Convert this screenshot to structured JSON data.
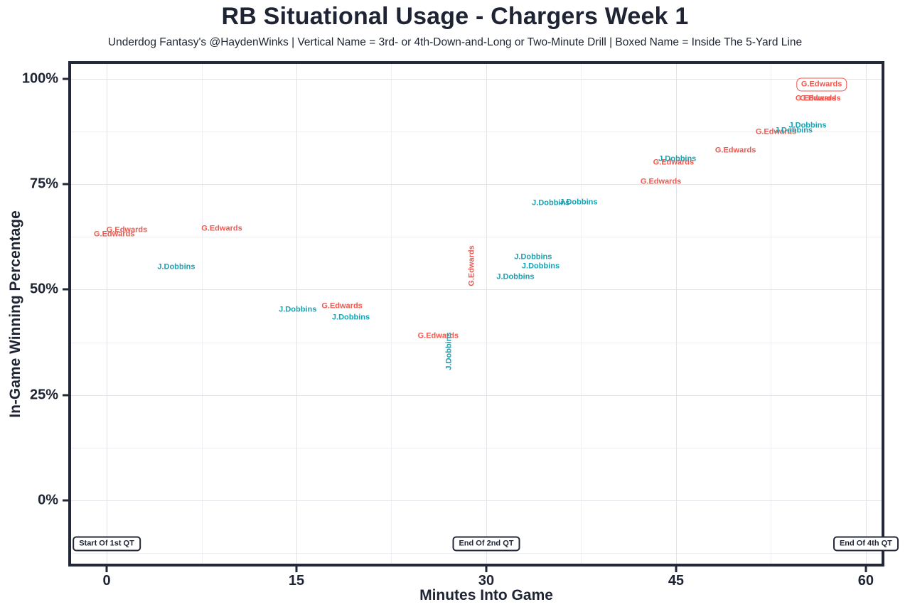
{
  "header": {
    "title": "RB Situational Usage - Chargers Week 1",
    "subtitle": "Underdog Fantasy's @HaydenWinks | Vertical Name = 3rd- or 4th-Down-and-Long or Two-Minute Drill | Boxed Name = Inside The 5-Yard Line"
  },
  "colors": {
    "edwards_red": "#ee584e",
    "dobbins_teal": "#16a3b3",
    "axis_dark": "#232838",
    "grid_major": "#e2e3e8",
    "grid_minor": "#efeff3"
  },
  "chart_data": {
    "type": "scatter",
    "title": "RB Situational Usage - Chargers Week 1",
    "subtitle": "Underdog Fantasy's @HaydenWinks | Vertical Name = 3rd- or 4th-Down-and-Long or Two-Minute Drill | Boxed Name = Inside The 5-Yard Line",
    "xlabel": "Minutes Into Game",
    "ylabel": "In-Game Winning Percentage",
    "xlim": [
      -2.81,
      61.24
    ],
    "ylim": [
      -15.0,
      103.5
    ],
    "grid": true,
    "legend": "none",
    "point_style": "text-label",
    "x_tick_labels": [
      {
        "value": 0,
        "label": "0"
      },
      {
        "value": 15,
        "label": "15"
      },
      {
        "value": 30,
        "label": "30"
      },
      {
        "value": 45,
        "label": "45"
      },
      {
        "value": 60,
        "label": "60"
      }
    ],
    "y_tick_labels": [
      {
        "value": 0,
        "label": "0%"
      },
      {
        "value": 25,
        "label": "25%"
      },
      {
        "value": 50,
        "label": "50%"
      },
      {
        "value": 75,
        "label": "75%"
      },
      {
        "value": 100,
        "label": "100%"
      }
    ],
    "x_gridlines": {
      "major": [
        0,
        15,
        30,
        45,
        60
      ],
      "minor": [
        7.5,
        22.5,
        37.5,
        52.5
      ]
    },
    "y_gridlines": {
      "major": [
        0,
        25,
        50,
        75,
        100
      ],
      "minor": [
        -12.5,
        12.5,
        37.5,
        62.5,
        87.5
      ]
    },
    "series": [
      {
        "name": "G.Edwards",
        "color": "#ee584e",
        "points": [
          {
            "x": 56.5,
            "y": 98.6,
            "boxed": true
          },
          {
            "x": 56.05,
            "y": 95.2
          },
          {
            "x": 56.4,
            "y": 95.2
          },
          {
            "x": 52.9,
            "y": 87.3
          },
          {
            "x": 49.7,
            "y": 82.9
          },
          {
            "x": 44.8,
            "y": 80.1
          },
          {
            "x": 43.8,
            "y": 75.6
          },
          {
            "x": 28.9,
            "y": 55.6,
            "rotated": true
          },
          {
            "x": 9.1,
            "y": 64.4
          },
          {
            "x": 1.6,
            "y": 64.1
          },
          {
            "x": 0.6,
            "y": 63.1
          },
          {
            "x": 18.6,
            "y": 46.0
          },
          {
            "x": 26.2,
            "y": 39.0
          }
        ]
      },
      {
        "name": "J.Dobbins",
        "color": "#16a3b3",
        "points": [
          {
            "x": 55.4,
            "y": 88.8
          },
          {
            "x": 54.3,
            "y": 87.7
          },
          {
            "x": 45.1,
            "y": 80.9
          },
          {
            "x": 37.3,
            "y": 70.7
          },
          {
            "x": 35.1,
            "y": 70.5
          },
          {
            "x": 33.7,
            "y": 57.7
          },
          {
            "x": 34.3,
            "y": 55.5
          },
          {
            "x": 32.3,
            "y": 53.0
          },
          {
            "x": 5.5,
            "y": 55.3
          },
          {
            "x": 15.1,
            "y": 45.2
          },
          {
            "x": 19.3,
            "y": 43.3
          },
          {
            "x": 27.1,
            "y": 35.4,
            "rotated": true
          }
        ]
      }
    ],
    "annotations": [
      {
        "label": "Start Of 1st QT",
        "x": 0,
        "y": -10.3
      },
      {
        "label": "End Of 2nd QT",
        "x": 30,
        "y": -10.3
      },
      {
        "label": "End Of 4th QT",
        "x": 60,
        "y": -10.3
      }
    ]
  }
}
